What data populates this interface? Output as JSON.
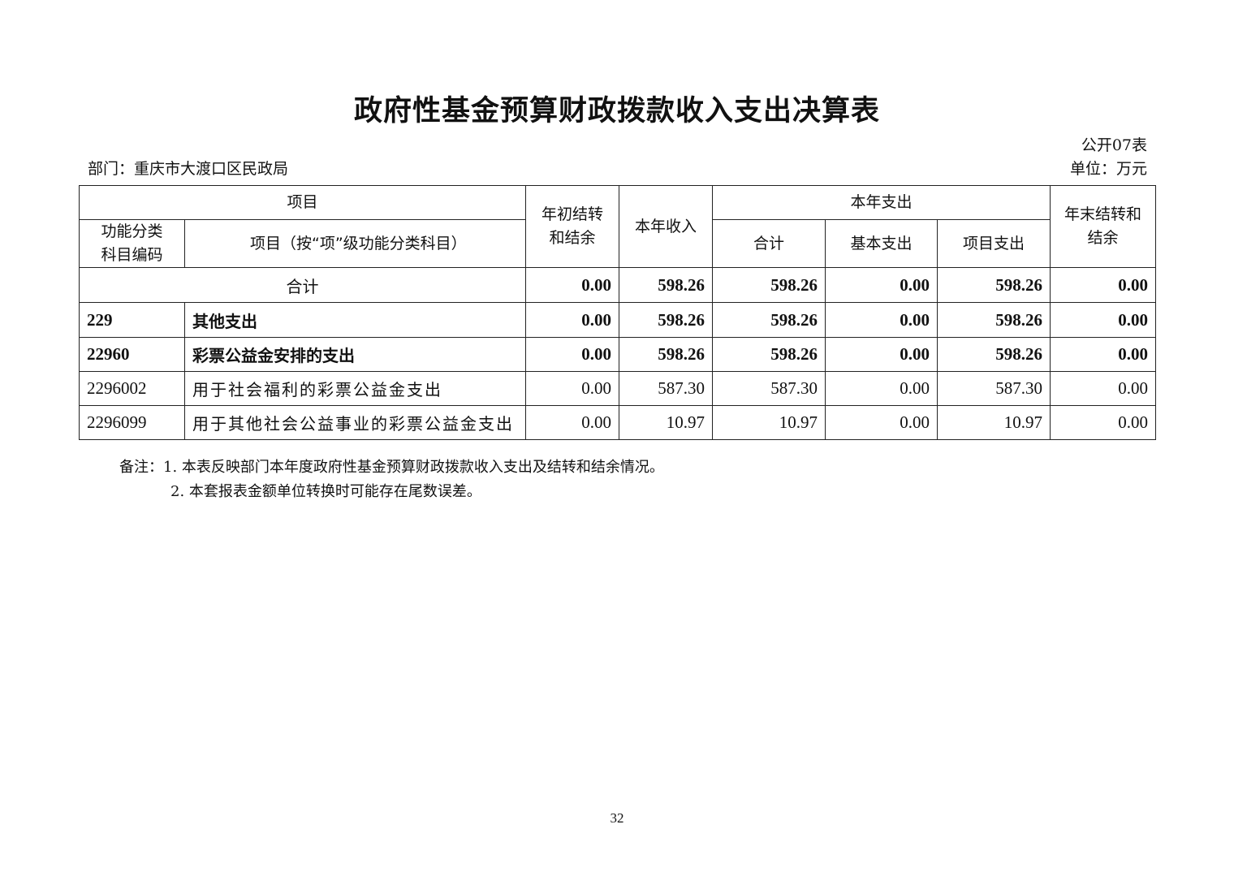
{
  "title": "政府性基金预算财政拨款收入支出决算表",
  "table_code": "公开07表",
  "department": "部门：重庆市大渡口区民政局",
  "unit": "单位：万元",
  "headers": {
    "item": "项目",
    "opening": "年初结转和结余",
    "income": "本年收入",
    "expense": "本年支出",
    "closing": "年末结转和结余",
    "code": "功能分类科目编码",
    "item_sub": "项目（按“项”级功能分类科目）",
    "total": "合计",
    "basic": "基本支出",
    "project": "项目支出"
  },
  "total_row": {
    "label": "合计",
    "values": [
      "0.00",
      "598.26",
      "598.26",
      "0.00",
      "598.26",
      "0.00"
    ]
  },
  "rows": [
    {
      "code": "229",
      "name": "其他支出",
      "bold": true,
      "values": [
        "0.00",
        "598.26",
        "598.26",
        "0.00",
        "598.26",
        "0.00"
      ]
    },
    {
      "code": "22960",
      "name": "彩票公益金安排的支出",
      "bold": true,
      "values": [
        "0.00",
        "598.26",
        "598.26",
        "0.00",
        "598.26",
        "0.00"
      ]
    },
    {
      "code": "2296002",
      "name": "用于社会福利的彩票公益金支出",
      "bold": false,
      "values": [
        "0.00",
        "587.30",
        "587.30",
        "0.00",
        "587.30",
        "0.00"
      ]
    },
    {
      "code": "2296099",
      "name": "用于其他社会公益事业的彩票公益金支出",
      "bold": false,
      "values": [
        "0.00",
        "10.97",
        "10.97",
        "0.00",
        "10.97",
        "0.00"
      ]
    }
  ],
  "notes": [
    "备注：1. 本表反映部门本年度政府性基金预算财政拨款收入支出及结转和结余情况。",
    "2. 本套报表金额单位转换时可能存在尾数误差。"
  ],
  "page_number": "32"
}
